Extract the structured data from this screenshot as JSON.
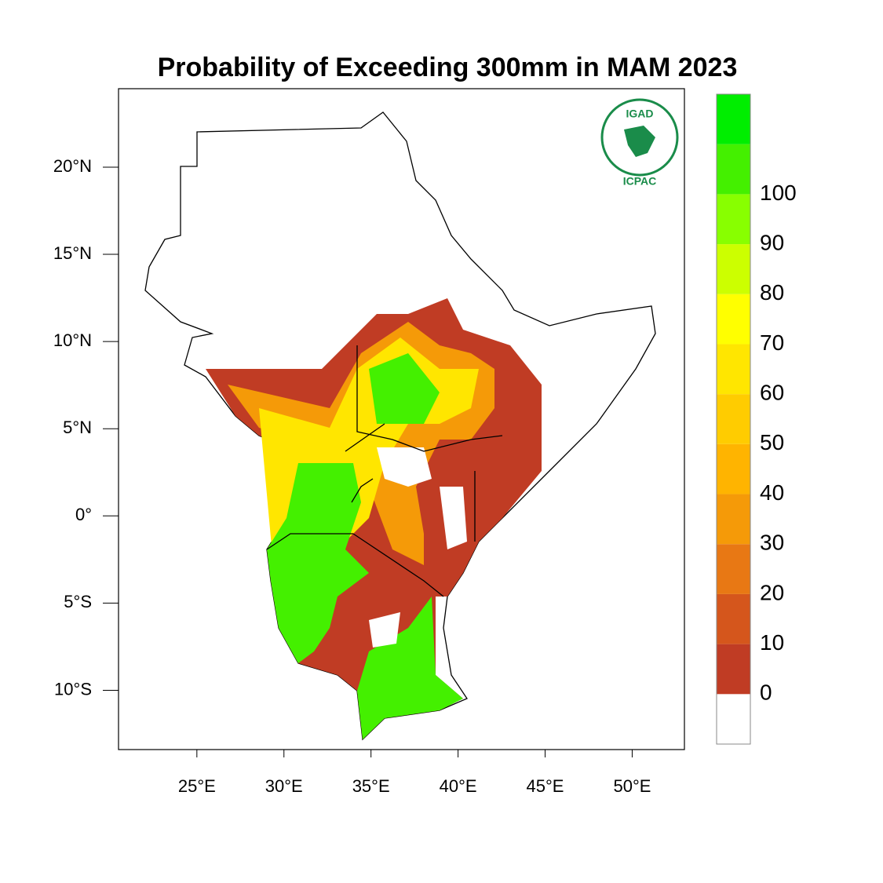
{
  "title": "Probability of Exceeding 300mm in MAM 2023",
  "map": {
    "xlim": [
      20.5,
      53
    ],
    "ylim": [
      -13.4,
      24.5
    ],
    "xticks": [
      {
        "value": 25,
        "label": "25°E"
      },
      {
        "value": 30,
        "label": "30°E"
      },
      {
        "value": 35,
        "label": "35°E"
      },
      {
        "value": 40,
        "label": "40°E"
      },
      {
        "value": 45,
        "label": "45°E"
      },
      {
        "value": 50,
        "label": "50°E"
      }
    ],
    "yticks": [
      {
        "value": 20,
        "label": "20°N"
      },
      {
        "value": 15,
        "label": "15°N"
      },
      {
        "value": 10,
        "label": "10°N"
      },
      {
        "value": 5,
        "label": "5°N"
      },
      {
        "value": 0,
        "label": "0°"
      },
      {
        "value": -5,
        "label": "5°S"
      },
      {
        "value": -10,
        "label": "10°S"
      }
    ]
  },
  "colorbar": {
    "levels": [
      0,
      10,
      20,
      30,
      40,
      50,
      60,
      70,
      80,
      90,
      100
    ],
    "below_color": "#ffffff",
    "colors": [
      "#c03c24",
      "#d5561c",
      "#e87814",
      "#f59a08",
      "#ffb400",
      "#ffcc00",
      "#ffe600",
      "#ffff00",
      "#ccff00",
      "#88ff00",
      "#44f000",
      "#00ee00"
    ]
  },
  "logo": {
    "name": "IGAD",
    "org": "ICPAC"
  }
}
